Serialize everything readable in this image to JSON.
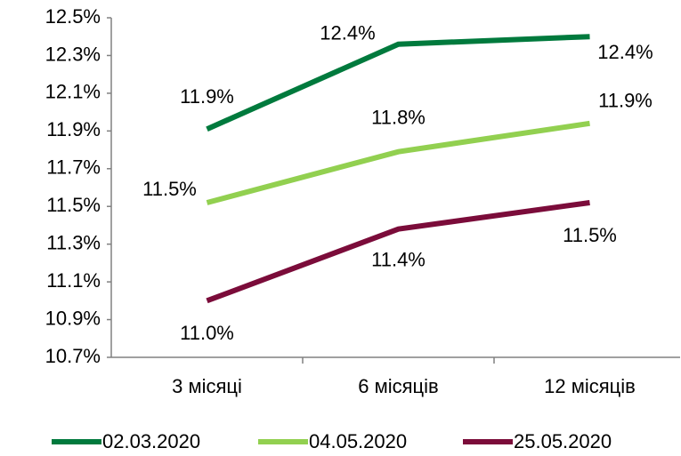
{
  "chart_data": {
    "type": "line",
    "categories": [
      "3 місяці",
      "6 місяців",
      "12 місяців"
    ],
    "series": [
      {
        "name": "02.03.2020",
        "color": "#007a3d",
        "values": [
          11.91,
          12.36,
          12.4
        ],
        "value_labels": [
          "11.9%",
          "12.4%",
          "12.4%"
        ]
      },
      {
        "name": "04.05.2020",
        "color": "#92d050",
        "values": [
          11.52,
          11.79,
          11.94
        ],
        "value_labels": [
          "11.5%",
          "11.8%",
          "11.9%"
        ]
      },
      {
        "name": "25.05.2020",
        "color": "#7b0c3a",
        "values": [
          11.0,
          11.38,
          11.52
        ],
        "value_labels": [
          "11.0%",
          "11.4%",
          "11.5%"
        ]
      }
    ],
    "ylim": [
      10.7,
      12.5
    ],
    "yticks": [
      {
        "value": 10.7,
        "label": "10.7%"
      },
      {
        "value": 10.9,
        "label": "10.9%"
      },
      {
        "value": 11.1,
        "label": "11.1%"
      },
      {
        "value": 11.3,
        "label": "11.3%"
      },
      {
        "value": 11.5,
        "label": "11.5%"
      },
      {
        "value": 11.7,
        "label": "11.7%"
      },
      {
        "value": 11.9,
        "label": "11.9%"
      },
      {
        "value": 12.1,
        "label": "12.1%"
      },
      {
        "value": 12.3,
        "label": "12.3%"
      },
      {
        "value": 12.5,
        "label": "12.5%"
      }
    ],
    "grid": false,
    "legend": "bottom"
  }
}
